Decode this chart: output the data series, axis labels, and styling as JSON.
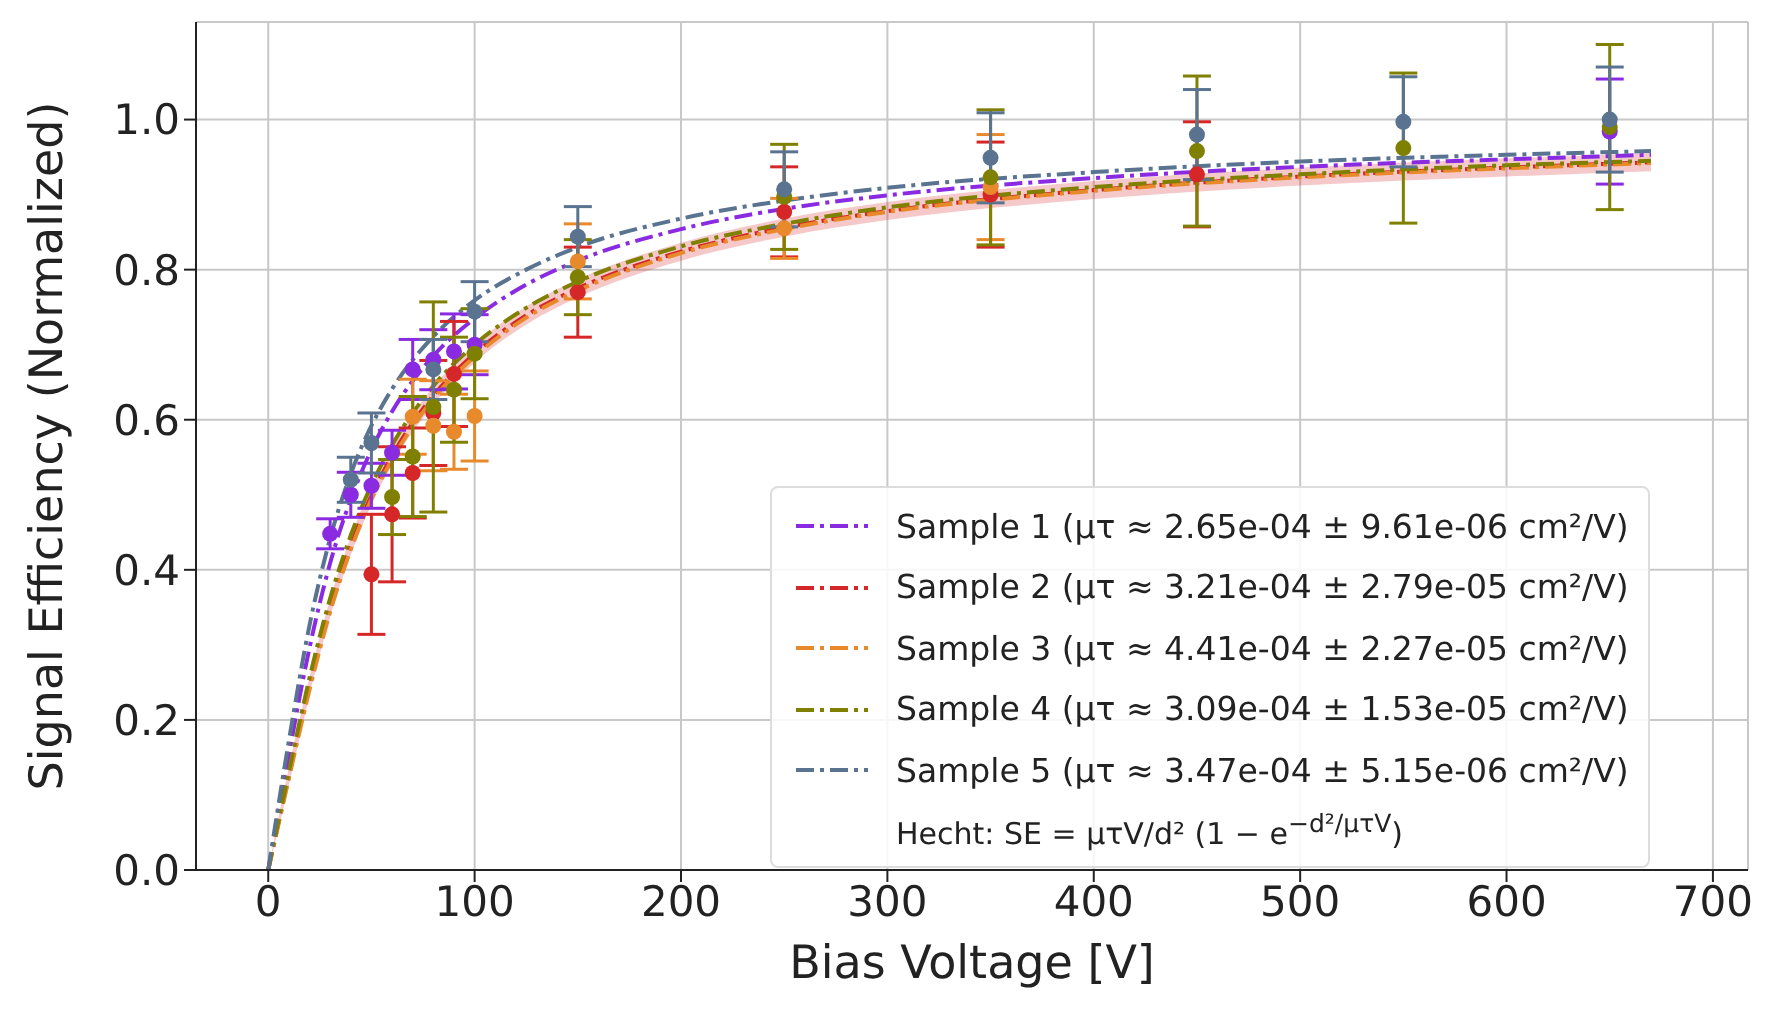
{
  "chart_data": {
    "type": "line",
    "xlabel": "Bias Voltage [V]",
    "ylabel": "Signal Efficiency (Normalized)",
    "xlim": [
      -35,
      717
    ],
    "xticks": [
      0,
      100,
      200,
      300,
      400,
      500,
      600,
      700
    ],
    "ylim": [
      0,
      1.13
    ],
    "yticks": [
      {
        "value": 0,
        "label": "0.0"
      },
      {
        "value": 0.2,
        "label": "0.2"
      },
      {
        "value": 0.4,
        "label": "0.4"
      },
      {
        "value": 0.6,
        "label": "0.6"
      },
      {
        "value": 0.8,
        "label": "0.8"
      },
      {
        "value": 1,
        "label": "1.0"
      }
    ],
    "grid": true,
    "legend": "bottom right",
    "line_style": "dashed",
    "annotations": [
      "Hecht: SE = μτV/d² (1 − e$^{−d²/μτV}$)"
    ],
    "series": [
      {
        "name": "Sample 1 (μτ ≈ 2.65e-04 ± 9.61e-06 cm²/V)",
        "color": "#8a2be2",
        "x": [
          0,
          10,
          20,
          30,
          40,
          50,
          60,
          80,
          100,
          125,
          150,
          200,
          250,
          300,
          400,
          500,
          600,
          670
        ],
        "values": [
          0,
          0.154,
          0.296,
          0.409,
          0.494,
          0.56,
          0.611,
          0.685,
          0.735,
          0.78,
          0.812,
          0.854,
          0.881,
          0.899,
          0.922,
          0.937,
          0.947,
          0.953
        ]
      },
      {
        "name": "Sample 2 (μτ ≈ 3.21e-04 ± 2.79e-05 cm²/V)",
        "color": "#d62728",
        "x": [
          0,
          10,
          20,
          30,
          40,
          50,
          60,
          80,
          100,
          125,
          150,
          200,
          250,
          300,
          400,
          500,
          600,
          670
        ],
        "values": [
          0,
          0.125,
          0.245,
          0.349,
          0.432,
          0.499,
          0.552,
          0.632,
          0.688,
          0.739,
          0.775,
          0.824,
          0.856,
          0.878,
          0.906,
          0.924,
          0.936,
          0.943
        ],
        "lower": [
          0,
          0.113,
          0.233,
          0.337,
          0.42,
          0.487,
          0.54,
          0.62,
          0.676,
          0.727,
          0.763,
          0.812,
          0.844,
          0.866,
          0.894,
          0.912,
          0.924,
          0.931
        ],
        "upper": [
          0,
          0.137,
          0.257,
          0.361,
          0.444,
          0.511,
          0.564,
          0.644,
          0.7,
          0.751,
          0.787,
          0.836,
          0.868,
          0.89,
          0.918,
          0.936,
          0.948,
          0.955
        ]
      },
      {
        "name": "Sample 3 (μτ ≈ 4.41e-04 ± 2.27e-05 cm²/V)",
        "color": "#e8892b",
        "x": [
          0,
          10,
          20,
          30,
          40,
          50,
          60,
          80,
          100,
          125,
          150,
          200,
          250,
          300,
          400,
          500,
          600,
          670
        ],
        "values": [
          0,
          0.122,
          0.24,
          0.344,
          0.427,
          0.494,
          0.547,
          0.628,
          0.684,
          0.736,
          0.772,
          0.822,
          0.854,
          0.877,
          0.905,
          0.923,
          0.935,
          0.942
        ]
      },
      {
        "name": "Sample 4 (μτ ≈ 3.09e-04 ± 1.53e-05 cm²/V)",
        "color": "#808000",
        "x": [
          0,
          10,
          20,
          30,
          40,
          50,
          60,
          80,
          100,
          125,
          150,
          200,
          250,
          300,
          400,
          500,
          600,
          670
        ],
        "values": [
          0,
          0.131,
          0.256,
          0.362,
          0.446,
          0.513,
          0.566,
          0.645,
          0.7,
          0.749,
          0.784,
          0.831,
          0.861,
          0.883,
          0.91,
          0.927,
          0.939,
          0.945
        ]
      },
      {
        "name": "Sample 5 (μτ ≈ 3.47e-04 ± 5.15e-06 cm²/V)",
        "color": "#5a7390",
        "x": [
          0,
          10,
          20,
          30,
          40,
          50,
          60,
          80,
          100,
          125,
          150,
          200,
          250,
          300,
          400,
          500,
          600,
          670
        ],
        "values": [
          0,
          0.172,
          0.326,
          0.442,
          0.528,
          0.592,
          0.641,
          0.711,
          0.759,
          0.8,
          0.83,
          0.868,
          0.892,
          0.909,
          0.93,
          0.944,
          0.953,
          0.958
        ]
      },
      {
        "type": "scatter",
        "marker": "circle",
        "color": "#8a2be2",
        "x": [
          30,
          40,
          50,
          60,
          70,
          80,
          90,
          100,
          650
        ],
        "values": [
          0.448,
          0.5,
          0.512,
          0.556,
          0.667,
          0.68,
          0.691,
          0.7,
          0.984
        ],
        "errors": [
          0.02,
          0.03,
          0.03,
          0.03,
          0.04,
          0.04,
          0.05,
          0.04,
          0.07
        ]
      },
      {
        "type": "scatter",
        "marker": "circle",
        "color": "#d62728",
        "x": [
          50,
          60,
          70,
          80,
          90,
          150,
          250,
          350,
          450
        ],
        "values": [
          0.394,
          0.474,
          0.529,
          0.609,
          0.661,
          0.77,
          0.877,
          0.9,
          0.927
        ],
        "errors": [
          0.08,
          0.09,
          0.06,
          0.07,
          0.07,
          0.06,
          0.06,
          0.07,
          0.07
        ]
      },
      {
        "type": "scatter",
        "marker": "circle",
        "color": "#e8892b",
        "x": [
          70,
          80,
          90,
          100,
          150,
          250,
          350
        ],
        "values": [
          0.604,
          0.592,
          0.584,
          0.605,
          0.811,
          0.855,
          0.91
        ],
        "errors": [
          0.05,
          0.06,
          0.05,
          0.06,
          0.05,
          0.04,
          0.07
        ]
      },
      {
        "type": "scatter",
        "marker": "circle",
        "color": "#808000",
        "x": [
          60,
          70,
          80,
          90,
          100,
          150,
          250,
          350,
          450,
          550,
          650
        ],
        "values": [
          0.497,
          0.551,
          0.617,
          0.64,
          0.688,
          0.79,
          0.897,
          0.923,
          0.958,
          0.962,
          0.99
        ],
        "errors": [
          0.05,
          0.08,
          0.14,
          0.07,
          0.06,
          0.05,
          0.07,
          0.09,
          0.1,
          0.1,
          0.11
        ]
      },
      {
        "type": "scatter",
        "marker": "circle",
        "color": "#5a7390",
        "x": [
          40,
          50,
          80,
          100,
          150,
          250,
          350,
          450,
          550,
          650
        ],
        "values": [
          0.52,
          0.569,
          0.667,
          0.744,
          0.844,
          0.907,
          0.949,
          0.98,
          0.997,
          1.0
        ],
        "errors": [
          0.03,
          0.04,
          0.04,
          0.04,
          0.04,
          0.05,
          0.06,
          0.06,
          0.06,
          0.07
        ]
      }
    ]
  }
}
